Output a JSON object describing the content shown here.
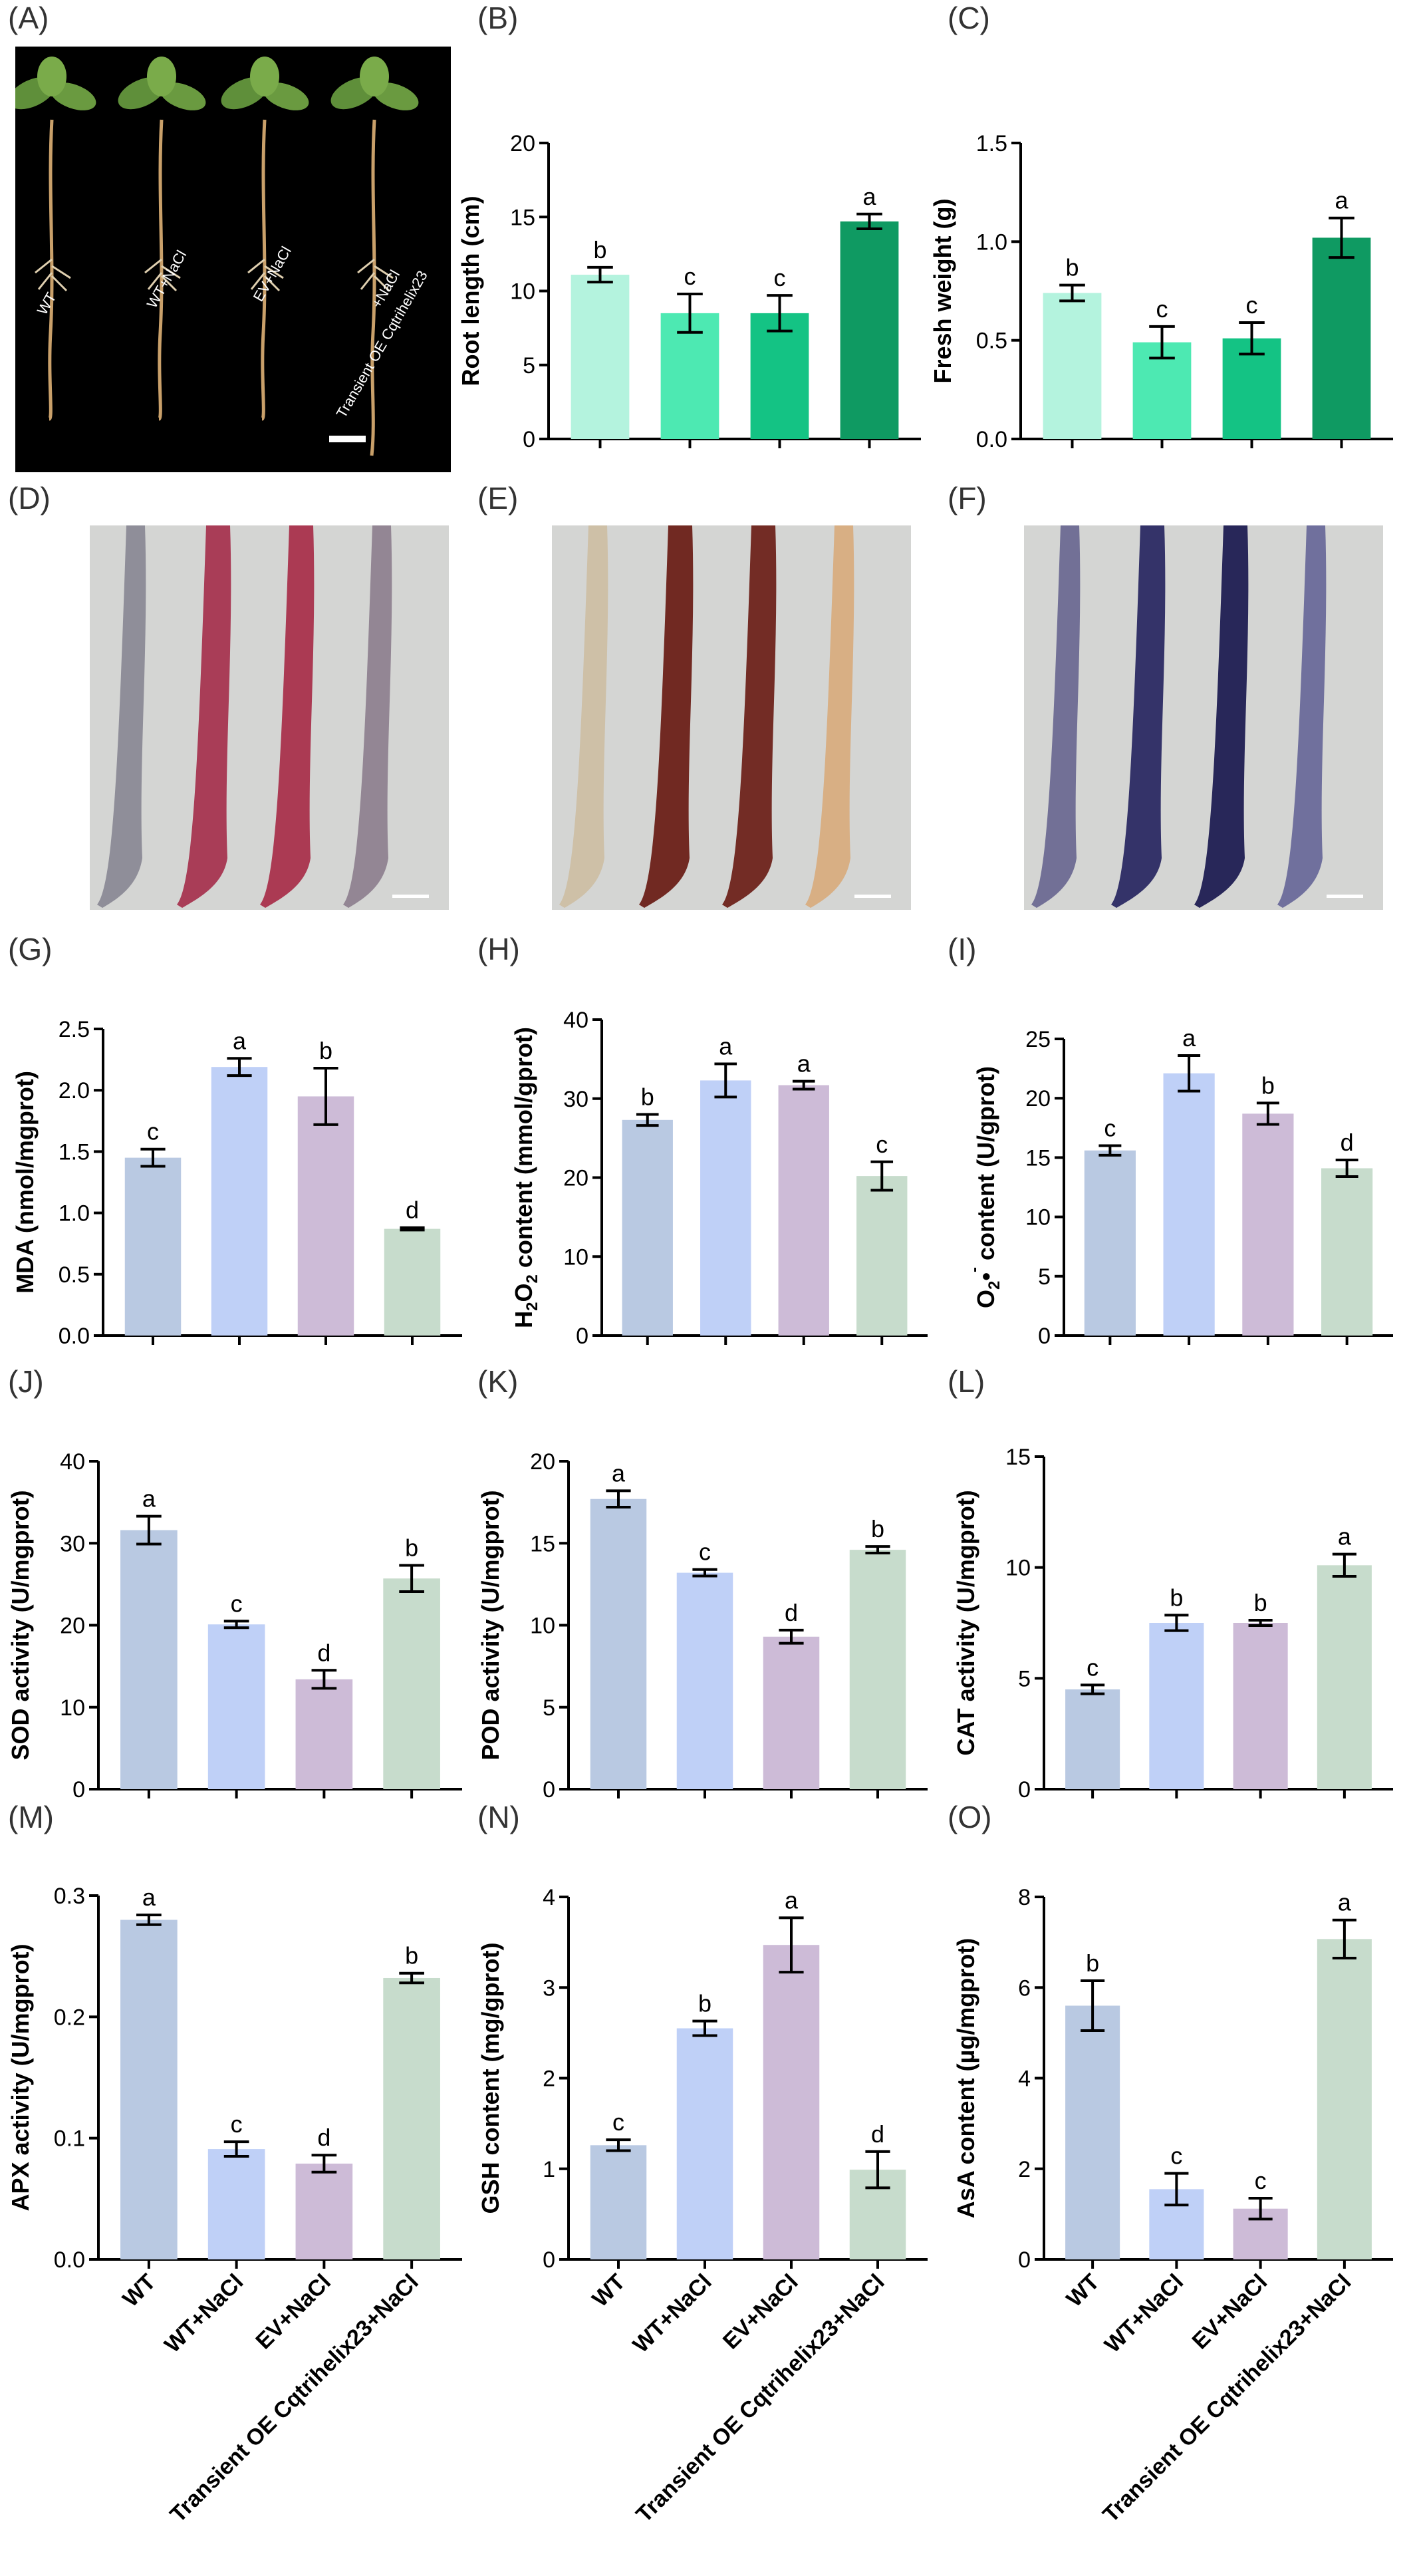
{
  "panel_labels": [
    "(A)",
    "(B)",
    "(C)",
    "(D)",
    "(E)",
    "(F)",
    "(G)",
    "(H)",
    "(I)",
    "(J)",
    "(K)",
    "(L)",
    "(M)",
    "(N)",
    "(O)"
  ],
  "photo_A": {
    "sample_labels": [
      "WT",
      "WT+NaCl",
      "EV+NaCl",
      "Transient OE Cqtrihelix23",
      "+NaCl"
    ]
  },
  "stain_colors": {
    "D": [
      "#8b8a96",
      "#a63550",
      "#a9324c",
      "#8f8290"
    ],
    "E": [
      "#cdbfa4",
      "#6b2018",
      "#6e231b",
      "#d8ad80"
    ],
    "F": [
      "#6d6a92",
      "#2b2a63",
      "#1f1e52",
      "#6a6a9a"
    ]
  },
  "colors": {
    "green_palette": [
      "#b4f3de",
      "#4de9b2",
      "#14c384",
      "#0f9a62"
    ],
    "pastel_palette": [
      "#b9c9e2",
      "#bfd0f7",
      "#cdbbd7",
      "#c7dccc"
    ],
    "axis": "#000000"
  },
  "chart_data": [
    {
      "panel": "B",
      "type": "bar",
      "ylabel": "Root length (cm)",
      "ylim": [
        0,
        20
      ],
      "yticks": [
        "0",
        "5",
        "10",
        "15",
        "20"
      ],
      "categories": [
        "WT",
        "WT+NaCl",
        "EV+NaCl",
        "Transient OE Cqtrihelix23+NaCl"
      ],
      "values": [
        11.1,
        8.5,
        8.5,
        14.7
      ],
      "errors": [
        0.5,
        1.3,
        1.2,
        0.5
      ],
      "letters": [
        "b",
        "c",
        "c",
        "a"
      ],
      "palette": "green"
    },
    {
      "panel": "C",
      "type": "bar",
      "ylabel": "Fresh weight (g)",
      "ylim": [
        0,
        1.5
      ],
      "yticks": [
        "0.0",
        "0.5",
        "1.0",
        "1.5"
      ],
      "categories": [
        "WT",
        "WT+NaCl",
        "EV+NaCl",
        "Transient OE Cqtrihelix23+NaCl"
      ],
      "values": [
        0.74,
        0.49,
        0.51,
        1.02
      ],
      "errors": [
        0.04,
        0.08,
        0.08,
        0.1
      ],
      "letters": [
        "b",
        "c",
        "c",
        "a"
      ],
      "palette": "green"
    },
    {
      "panel": "G",
      "type": "bar",
      "ylabel": "MDA (nmol/mgprot)",
      "ylim": [
        0,
        2.5
      ],
      "yticks": [
        "0.0",
        "0.5",
        "1.0",
        "1.5",
        "2.0",
        "2.5"
      ],
      "categories": [
        "WT",
        "WT+NaCl",
        "EV+NaCl",
        "Transient OE Cqtrihelix23+NaCl"
      ],
      "values": [
        1.45,
        2.19,
        1.95,
        0.87
      ],
      "errors": [
        0.07,
        0.07,
        0.23,
        0.01
      ],
      "letters": [
        "c",
        "a",
        "b",
        "d"
      ],
      "palette": "pastel"
    },
    {
      "panel": "H",
      "type": "bar",
      "ylabel_parts": [
        "H",
        "2",
        "O",
        "2",
        " content (mmol/gprot)"
      ],
      "ylim": [
        0,
        40
      ],
      "yticks": [
        "0",
        "10",
        "20",
        "30",
        "40"
      ],
      "categories": [
        "WT",
        "WT+NaCl",
        "EV+NaCl",
        "Transient OE Cqtrihelix23+NaCl"
      ],
      "values": [
        27.3,
        32.3,
        31.7,
        20.2
      ],
      "errors": [
        0.7,
        2.1,
        0.5,
        1.8
      ],
      "letters": [
        "b",
        "a",
        "a",
        "c"
      ],
      "palette": "pastel"
    },
    {
      "panel": "I",
      "type": "bar",
      "ylabel_parts": [
        "O",
        "2",
        "•",
        "-",
        " content (U/gprot)"
      ],
      "ylim": [
        0,
        25
      ],
      "yticks": [
        "0",
        "5",
        "10",
        "15",
        "20",
        "25"
      ],
      "categories": [
        "WT",
        "WT+NaCl",
        "EV+NaCl",
        "Transient OE Cqtrihelix23+NaCl"
      ],
      "values": [
        15.6,
        22.1,
        18.7,
        14.1
      ],
      "errors": [
        0.4,
        1.5,
        0.9,
        0.7
      ],
      "letters": [
        "c",
        "a",
        "b",
        "d"
      ],
      "palette": "pastel"
    },
    {
      "panel": "J",
      "type": "bar",
      "ylabel": "SOD activity (U/mgprot)",
      "ylim": [
        0,
        40
      ],
      "yticks": [
        "0",
        "10",
        "20",
        "30",
        "40"
      ],
      "categories": [
        "WT",
        "WT+NaCl",
        "EV+NaCl",
        "Transient OE Cqtrihelix23+NaCl"
      ],
      "values": [
        31.6,
        20.1,
        13.4,
        25.7
      ],
      "errors": [
        1.7,
        0.4,
        1.1,
        1.6
      ],
      "letters": [
        "a",
        "c",
        "d",
        "b"
      ],
      "palette": "pastel"
    },
    {
      "panel": "K",
      "type": "bar",
      "ylabel": "POD activity (U/mgprot)",
      "ylim": [
        0,
        20
      ],
      "yticks": [
        "0",
        "5",
        "10",
        "15",
        "20"
      ],
      "categories": [
        "WT",
        "WT+NaCl",
        "EV+NaCl",
        "Transient OE Cqtrihelix23+NaCl"
      ],
      "values": [
        17.7,
        13.2,
        9.3,
        14.6
      ],
      "errors": [
        0.5,
        0.2,
        0.4,
        0.2
      ],
      "letters": [
        "a",
        "c",
        "d",
        "b"
      ],
      "palette": "pastel"
    },
    {
      "panel": "L",
      "type": "bar",
      "ylabel": "CAT activity (U/mgprot)",
      "ylim": [
        0,
        15
      ],
      "yticks": [
        "0",
        "5",
        "10",
        "15"
      ],
      "categories": [
        "WT",
        "WT+NaCl",
        "EV+NaCl",
        "Transient OE Cqtrihelix23+NaCl"
      ],
      "values": [
        4.5,
        7.5,
        7.5,
        10.1
      ],
      "errors": [
        0.2,
        0.35,
        0.12,
        0.5
      ],
      "letters": [
        "c",
        "b",
        "b",
        "a"
      ],
      "palette": "pastel"
    },
    {
      "panel": "M",
      "type": "bar",
      "ylabel": "APX activity (U/mgprot)",
      "ylim": [
        0,
        0.3
      ],
      "yticks": [
        "0.0",
        "0.1",
        "0.2",
        "0.3"
      ],
      "categories": [
        "WT",
        "WT+NaCl",
        "EV+NaCl",
        "Transient OE Cqtrihelix23+NaCl"
      ],
      "values": [
        0.28,
        0.091,
        0.079,
        0.232
      ],
      "errors": [
        0.004,
        0.006,
        0.007,
        0.004
      ],
      "letters": [
        "a",
        "c",
        "d",
        "b"
      ],
      "palette": "pastel"
    },
    {
      "panel": "N",
      "type": "bar",
      "ylabel": "GSH content (mg/gprot)",
      "ylim": [
        0,
        4
      ],
      "yticks": [
        "0",
        "1",
        "2",
        "3",
        "4"
      ],
      "categories": [
        "WT",
        "WT+NaCl",
        "EV+NaCl",
        "Transient OE Cqtrihelix23+NaCl"
      ],
      "values": [
        1.26,
        2.55,
        3.47,
        0.99
      ],
      "errors": [
        0.06,
        0.08,
        0.3,
        0.2
      ],
      "letters": [
        "c",
        "b",
        "a",
        "d"
      ],
      "palette": "pastel"
    },
    {
      "panel": "O",
      "type": "bar",
      "ylabel": "AsA content (µg/mgprot)",
      "ylim": [
        0,
        8
      ],
      "yticks": [
        "0",
        "2",
        "4",
        "6",
        "8"
      ],
      "categories": [
        "WT",
        "WT+NaCl",
        "EV+NaCl",
        "Transient OE Cqtrihelix23+NaCl"
      ],
      "values": [
        5.6,
        1.55,
        1.12,
        7.07
      ],
      "errors": [
        0.55,
        0.35,
        0.23,
        0.42
      ],
      "letters": [
        "b",
        "c",
        "c",
        "a"
      ],
      "palette": "pastel"
    }
  ]
}
